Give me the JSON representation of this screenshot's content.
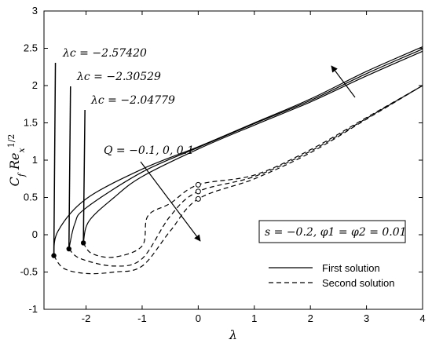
{
  "chart_data": {
    "type": "line",
    "xlabel": "λ",
    "ylabel": "CfRex1/2",
    "xlim": [
      -2.75,
      4
    ],
    "ylim": [
      -1,
      3
    ],
    "xticks": [
      "-2",
      "-1",
      "0",
      "1",
      "2",
      "3",
      "4"
    ],
    "yticks": [
      "-1",
      "-0.5",
      "0",
      "0.5",
      "1",
      "1.5",
      "2",
      "2.5",
      "3"
    ],
    "grid": false,
    "series": [
      {
        "group": "first",
        "x": [
          -2.5742,
          -2.5,
          -2.0,
          -1.0,
          0.0,
          1.0,
          2.0,
          3.0,
          4.0
        ],
        "y": [
          -0.28,
          0.05,
          0.48,
          0.88,
          1.18,
          1.5,
          1.82,
          2.19,
          2.52
        ]
      },
      {
        "group": "first",
        "x": [
          -2.30529,
          -2.2,
          -2.0,
          -1.0,
          0.0,
          1.0,
          2.0,
          3.0,
          4.0
        ],
        "y": [
          -0.19,
          0.15,
          0.36,
          0.84,
          1.17,
          1.49,
          1.8,
          2.16,
          2.49
        ]
      },
      {
        "group": "first",
        "x": [
          -2.04779,
          -1.95,
          -1.5,
          -1.0,
          0.0,
          1.0,
          2.0,
          3.0,
          4.0
        ],
        "y": [
          -0.11,
          0.18,
          0.5,
          0.78,
          1.15,
          1.47,
          1.78,
          2.13,
          2.46
        ]
      },
      {
        "group": "second",
        "x": [
          -2.5742,
          -2.4,
          -2.0,
          -1.5,
          -1.0,
          -0.5,
          0.0,
          1.0,
          2.0,
          3.0,
          4.0
        ],
        "y": [
          -0.28,
          -0.45,
          -0.52,
          -0.5,
          -0.42,
          0.05,
          0.48,
          0.75,
          1.1,
          1.55,
          2.0
        ]
      },
      {
        "group": "second",
        "x": [
          -2.30529,
          -2.1,
          -1.5,
          -1.0,
          -0.5,
          0.0,
          1.0,
          2.0,
          3.0,
          4.0
        ],
        "y": [
          -0.19,
          -0.32,
          -0.42,
          -0.32,
          0.25,
          0.58,
          0.78,
          1.12,
          1.56,
          2.0
        ]
      },
      {
        "group": "second",
        "x": [
          -2.04779,
          -1.9,
          -1.5,
          -1.0,
          -0.9,
          -0.5,
          0.0,
          1.0,
          2.0,
          3.0,
          4.0
        ],
        "y": [
          -0.11,
          -0.25,
          -0.3,
          -0.15,
          0.25,
          0.42,
          0.67,
          0.8,
          1.14,
          1.57,
          2.0
        ]
      }
    ],
    "critical_points": [
      {
        "x": -2.5742,
        "y": -0.28,
        "label": "λc = −2.57420"
      },
      {
        "x": -2.30529,
        "y": -0.19,
        "label": "λc = −2.30529"
      },
      {
        "x": -2.04779,
        "y": -0.11,
        "label": "λc = −2.04779"
      }
    ],
    "open_markers": [
      {
        "x": 0.0,
        "y": 0.67
      },
      {
        "x": 0.0,
        "y": 0.58
      },
      {
        "x": 0.0,
        "y": 0.48
      }
    ],
    "annotations": {
      "q_label": "Q = −0.1, 0, 0.1",
      "param_box": "s = −0.2, φ1 = φ2 = 0.01"
    },
    "legend": {
      "position": "bottom-right",
      "entries": [
        {
          "label": "First solution",
          "style": "solid"
        },
        {
          "label": "Second solution",
          "style": "dashed"
        }
      ]
    }
  }
}
